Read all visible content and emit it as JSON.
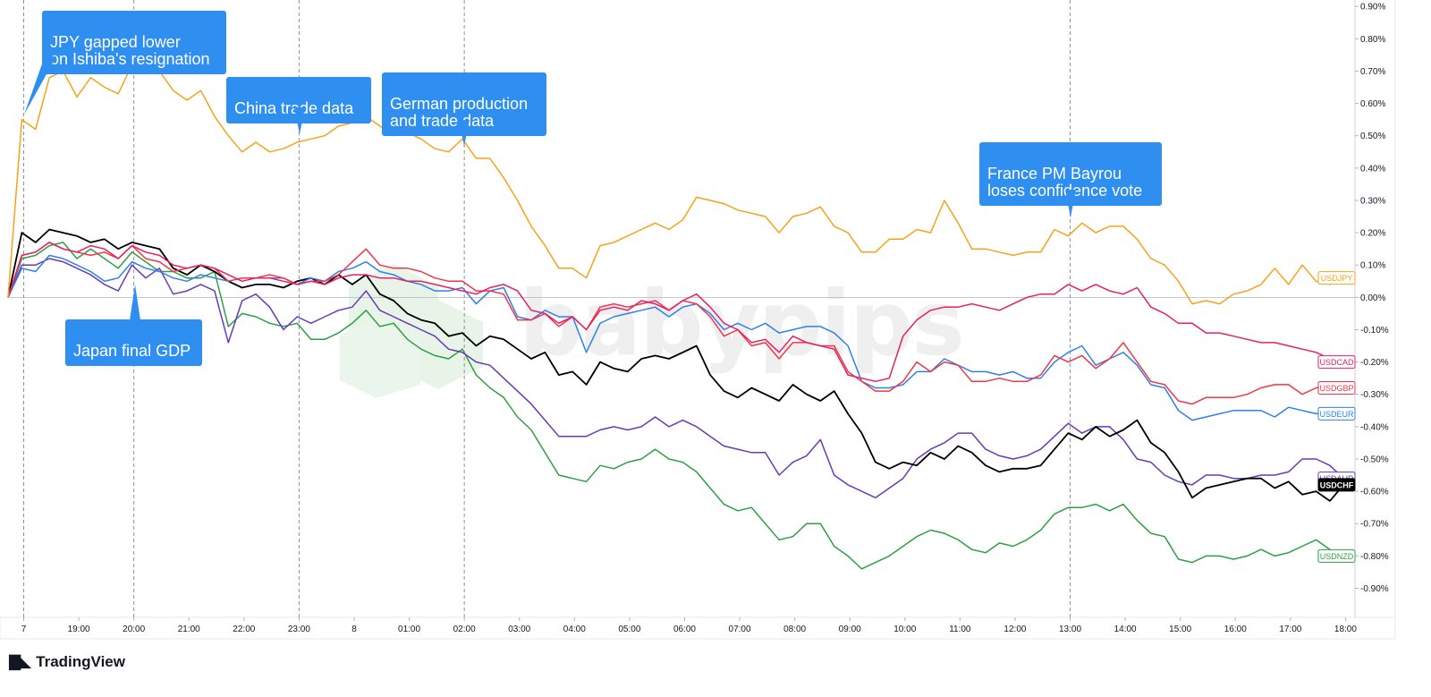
{
  "chart_data": {
    "type": "line",
    "x_tick_labels": [
      "7",
      "19:00",
      "20:00",
      "21:00",
      "22:00",
      "23:00",
      "8",
      "01:00",
      "02:00",
      "03:00",
      "04:00",
      "05:00",
      "06:00",
      "07:00",
      "08:00",
      "09:00",
      "10:00",
      "11:00",
      "12:00",
      "13:00",
      "14:00",
      "15:00",
      "16:00",
      "17:00",
      "18:00"
    ],
    "y_tick_labels": [
      "0.90%",
      "0.80%",
      "0.70%",
      "0.60%",
      "0.50%",
      "0.40%",
      "0.30%",
      "0.20%",
      "0.10%",
      "0.00%",
      "-0.10%",
      "-0.20%",
      "-0.30%",
      "-0.40%",
      "-0.50%",
      "-0.60%",
      "-0.70%",
      "-0.80%",
      "-0.90%"
    ],
    "ylim": [
      -0.99,
      0.92
    ],
    "y_unit": "%",
    "x_step_hours": 0.25,
    "series": [
      {
        "name": "USDJPY",
        "color": "#f7a21b",
        "label_fill": "#ffffff",
        "values": [
          0,
          0.55,
          0.52,
          0.68,
          0.7,
          0.62,
          0.68,
          0.65,
          0.63,
          0.72,
          0.73,
          0.7,
          0.64,
          0.61,
          0.64,
          0.56,
          0.5,
          0.45,
          0.48,
          0.45,
          0.46,
          0.48,
          0.49,
          0.5,
          0.53,
          0.54,
          0.56,
          0.53,
          0.5,
          0.51,
          0.49,
          0.46,
          0.45,
          0.49,
          0.43,
          0.43,
          0.37,
          0.3,
          0.22,
          0.16,
          0.09,
          0.09,
          0.06,
          0.16,
          0.17,
          0.19,
          0.21,
          0.23,
          0.21,
          0.24,
          0.31,
          0.3,
          0.29,
          0.27,
          0.26,
          0.25,
          0.2,
          0.25,
          0.26,
          0.28,
          0.22,
          0.2,
          0.14,
          0.14,
          0.18,
          0.18,
          0.21,
          0.2,
          0.3,
          0.23,
          0.15,
          0.15,
          0.14,
          0.13,
          0.14,
          0.14,
          0.21,
          0.19,
          0.23,
          0.2,
          0.22,
          0.22,
          0.18,
          0.12,
          0.1,
          0.05,
          -0.02,
          -0.01,
          -0.02,
          0.01,
          0.02,
          0.04,
          0.09,
          0.04,
          0.1,
          0.05,
          0.04,
          0.06
        ]
      },
      {
        "name": "USDCAD",
        "color": "#e91e63",
        "label_fill": "#ffffff",
        "values": [
          0,
          0.13,
          0.14,
          0.17,
          0.15,
          0.14,
          0.16,
          0.15,
          0.12,
          0.16,
          0.14,
          0.13,
          0.1,
          0.09,
          0.1,
          0.09,
          0.07,
          0.05,
          0.06,
          0.06,
          0.05,
          0.04,
          0.05,
          0.04,
          0.06,
          0.07,
          0.07,
          0.06,
          0.06,
          0.05,
          0.05,
          0.04,
          0.03,
          0.02,
          0.01,
          0.03,
          0.04,
          0.02,
          -0.04,
          -0.05,
          -0.08,
          -0.06,
          -0.1,
          -0.04,
          -0.03,
          -0.04,
          -0.01,
          -0.02,
          -0.04,
          -0.01,
          0.01,
          -0.03,
          -0.08,
          -0.1,
          -0.14,
          -0.13,
          -0.17,
          -0.12,
          -0.14,
          -0.15,
          -0.16,
          -0.24,
          -0.25,
          -0.26,
          -0.25,
          -0.12,
          -0.07,
          -0.04,
          -0.03,
          -0.03,
          -0.02,
          -0.03,
          -0.04,
          -0.02,
          0.0,
          0.01,
          0.01,
          0.04,
          0.02,
          0.04,
          0.02,
          0.01,
          0.03,
          -0.03,
          -0.05,
          -0.08,
          -0.08,
          -0.11,
          -0.11,
          -0.12,
          -0.13,
          -0.14,
          -0.14,
          -0.15,
          -0.16,
          -0.17,
          -0.19,
          -0.2
        ]
      },
      {
        "name": "USDGBP",
        "color": "#f23645",
        "label_fill": "#ffffff",
        "values": [
          0,
          0.13,
          0.14,
          0.17,
          0.15,
          0.14,
          0.13,
          0.14,
          0.12,
          0.16,
          0.12,
          0.11,
          0.08,
          0.09,
          0.1,
          0.09,
          0.05,
          0.06,
          0.06,
          0.07,
          0.06,
          0.04,
          0.05,
          0.05,
          0.07,
          0.11,
          0.15,
          0.1,
          0.09,
          0.09,
          0.08,
          0.06,
          0.05,
          0.05,
          0.02,
          0.02,
          0.01,
          -0.07,
          -0.07,
          -0.05,
          -0.09,
          -0.06,
          -0.1,
          -0.03,
          -0.02,
          -0.03,
          -0.02,
          -0.01,
          -0.04,
          -0.01,
          -0.02,
          -0.06,
          -0.12,
          -0.1,
          -0.15,
          -0.14,
          -0.19,
          -0.14,
          -0.14,
          -0.15,
          -0.15,
          -0.23,
          -0.26,
          -0.29,
          -0.29,
          -0.26,
          -0.2,
          -0.23,
          -0.2,
          -0.21,
          -0.26,
          -0.26,
          -0.25,
          -0.26,
          -0.26,
          -0.24,
          -0.18,
          -0.2,
          -0.18,
          -0.22,
          -0.19,
          -0.14,
          -0.2,
          -0.26,
          -0.27,
          -0.32,
          -0.33,
          -0.31,
          -0.31,
          -0.31,
          -0.3,
          -0.28,
          -0.27,
          -0.27,
          -0.3,
          -0.28,
          -0.28,
          -0.28
        ]
      },
      {
        "name": "USDEUR",
        "color": "#2f80ed",
        "label_fill": "#ffffff",
        "values": [
          0,
          0.09,
          0.08,
          0.13,
          0.12,
          0.1,
          0.08,
          0.05,
          0.06,
          0.11,
          0.09,
          0.08,
          0.06,
          0.05,
          0.07,
          0.06,
          0.05,
          0.06,
          0.06,
          0.06,
          0.06,
          0.04,
          0.06,
          0.05,
          0.08,
          0.09,
          0.11,
          0.08,
          0.07,
          0.05,
          0.04,
          0.02,
          0.02,
          0.03,
          -0.02,
          0.02,
          0.03,
          -0.06,
          -0.07,
          -0.04,
          -0.06,
          -0.06,
          -0.17,
          -0.08,
          -0.06,
          -0.05,
          -0.04,
          -0.03,
          -0.06,
          -0.03,
          -0.02,
          -0.05,
          -0.1,
          -0.08,
          -0.1,
          -0.08,
          -0.11,
          -0.1,
          -0.09,
          -0.09,
          -0.11,
          -0.15,
          -0.26,
          -0.28,
          -0.28,
          -0.27,
          -0.23,
          -0.23,
          -0.19,
          -0.21,
          -0.23,
          -0.23,
          -0.24,
          -0.23,
          -0.25,
          -0.25,
          -0.2,
          -0.17,
          -0.15,
          -0.21,
          -0.19,
          -0.17,
          -0.21,
          -0.27,
          -0.28,
          -0.35,
          -0.38,
          -0.37,
          -0.36,
          -0.35,
          -0.35,
          -0.35,
          -0.37,
          -0.34,
          -0.35,
          -0.36,
          -0.36,
          -0.36
        ]
      },
      {
        "name": "USDAUD",
        "color": "#673ab7",
        "label_fill": "#ffffff",
        "values": [
          0,
          0.1,
          0.1,
          0.12,
          0.11,
          0.09,
          0.07,
          0.04,
          0.02,
          0.1,
          0.06,
          0.09,
          0.01,
          0.02,
          0.04,
          0.02,
          -0.14,
          -0.01,
          0.01,
          -0.03,
          -0.1,
          -0.06,
          -0.08,
          -0.06,
          -0.04,
          -0.03,
          0.02,
          -0.04,
          -0.06,
          -0.08,
          -0.1,
          -0.12,
          -0.16,
          -0.17,
          -0.2,
          -0.21,
          -0.25,
          -0.29,
          -0.33,
          -0.38,
          -0.43,
          -0.43,
          -0.43,
          -0.41,
          -0.4,
          -0.41,
          -0.4,
          -0.37,
          -0.4,
          -0.38,
          -0.4,
          -0.43,
          -0.46,
          -0.47,
          -0.48,
          -0.48,
          -0.55,
          -0.51,
          -0.49,
          -0.44,
          -0.55,
          -0.58,
          -0.6,
          -0.62,
          -0.59,
          -0.56,
          -0.5,
          -0.47,
          -0.45,
          -0.42,
          -0.42,
          -0.47,
          -0.49,
          -0.5,
          -0.49,
          -0.47,
          -0.43,
          -0.39,
          -0.42,
          -0.4,
          -0.4,
          -0.44,
          -0.5,
          -0.51,
          -0.55,
          -0.57,
          -0.58,
          -0.55,
          -0.55,
          -0.56,
          -0.56,
          -0.55,
          -0.55,
          -0.54,
          -0.5,
          -0.5,
          -0.52,
          -0.56
        ]
      },
      {
        "name": "USDCHF",
        "color": "#000000",
        "label_fill": "#000000",
        "values": [
          0,
          0.2,
          0.17,
          0.21,
          0.2,
          0.19,
          0.17,
          0.18,
          0.15,
          0.17,
          0.16,
          0.15,
          0.09,
          0.07,
          0.1,
          0.08,
          0.05,
          0.03,
          0.04,
          0.04,
          0.03,
          0.05,
          0.06,
          0.04,
          0.07,
          0.04,
          0.07,
          0.01,
          -0.01,
          -0.05,
          -0.07,
          -0.08,
          -0.12,
          -0.11,
          -0.15,
          -0.12,
          -0.13,
          -0.16,
          -0.19,
          -0.17,
          -0.24,
          -0.23,
          -0.27,
          -0.2,
          -0.22,
          -0.23,
          -0.19,
          -0.18,
          -0.19,
          -0.17,
          -0.15,
          -0.24,
          -0.29,
          -0.31,
          -0.28,
          -0.3,
          -0.32,
          -0.27,
          -0.3,
          -0.32,
          -0.29,
          -0.36,
          -0.42,
          -0.51,
          -0.53,
          -0.51,
          -0.52,
          -0.48,
          -0.5,
          -0.46,
          -0.48,
          -0.52,
          -0.54,
          -0.53,
          -0.53,
          -0.52,
          -0.47,
          -0.42,
          -0.44,
          -0.4,
          -0.43,
          -0.41,
          -0.38,
          -0.45,
          -0.48,
          -0.54,
          -0.62,
          -0.59,
          -0.58,
          -0.57,
          -0.56,
          -0.56,
          -0.59,
          -0.57,
          -0.61,
          -0.6,
          -0.63,
          -0.58
        ]
      },
      {
        "name": "USDNZD",
        "color": "#2ea043",
        "label_fill": "#ffffff",
        "values": [
          0,
          0.12,
          0.13,
          0.16,
          0.17,
          0.12,
          0.15,
          0.12,
          0.09,
          0.14,
          0.11,
          0.08,
          0.08,
          0.06,
          0.06,
          0.08,
          -0.09,
          -0.05,
          -0.06,
          -0.08,
          -0.09,
          -0.08,
          -0.13,
          -0.13,
          -0.11,
          -0.08,
          -0.04,
          -0.09,
          -0.08,
          -0.13,
          -0.16,
          -0.18,
          -0.19,
          -0.16,
          -0.24,
          -0.28,
          -0.31,
          -0.37,
          -0.41,
          -0.48,
          -0.55,
          -0.56,
          -0.57,
          -0.52,
          -0.53,
          -0.51,
          -0.5,
          -0.47,
          -0.5,
          -0.51,
          -0.54,
          -0.59,
          -0.64,
          -0.66,
          -0.65,
          -0.7,
          -0.75,
          -0.74,
          -0.7,
          -0.7,
          -0.77,
          -0.8,
          -0.84,
          -0.82,
          -0.8,
          -0.77,
          -0.74,
          -0.72,
          -0.73,
          -0.75,
          -0.78,
          -0.79,
          -0.76,
          -0.77,
          -0.75,
          -0.72,
          -0.67,
          -0.65,
          -0.65,
          -0.64,
          -0.66,
          -0.64,
          -0.69,
          -0.73,
          -0.74,
          -0.81,
          -0.82,
          -0.8,
          -0.8,
          -0.81,
          -0.8,
          -0.78,
          -0.8,
          -0.79,
          -0.77,
          -0.75,
          -0.78,
          -0.8
        ]
      }
    ],
    "event_lines": [
      "7",
      "20:00",
      "23:00",
      "02:00",
      "13:00"
    ],
    "annotations": [
      {
        "text": "JPY gapped lower\non Ishiba's resignation",
        "color": "#2f8ff0"
      },
      {
        "text": "China trade data",
        "color": "#2f8ff0"
      },
      {
        "text": "German production\nand trade data",
        "color": "#2f8ff0"
      },
      {
        "text": "France PM Bayrou\nloses confidence vote",
        "color": "#2f8ff0"
      },
      {
        "text": "Japan final GDP",
        "color": "#2f8ff0"
      }
    ],
    "grid": false,
    "zero_line": true,
    "legend": "right-axis labels"
  },
  "branding": {
    "name": "TradingView",
    "logo_icon": "tradingview-logo-icon",
    "watermark": "babypips"
  }
}
